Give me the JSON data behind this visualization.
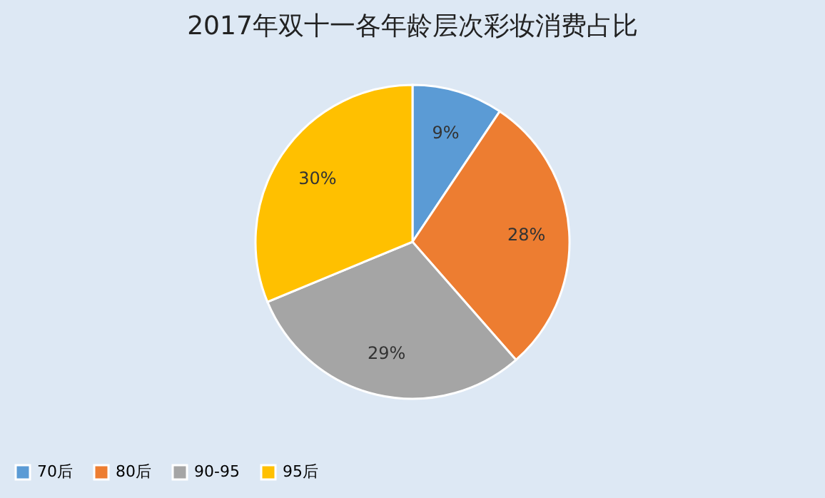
{
  "chart_data": {
    "type": "pie",
    "title": "2017年双十一各年龄层次彩妆消费占比",
    "categories": [
      "70后",
      "80后",
      "90-95",
      "95后"
    ],
    "values": [
      9,
      28,
      29,
      30
    ],
    "value_labels": [
      "9%",
      "28%",
      "29%",
      "30%"
    ],
    "colors": [
      "#5b9bd5",
      "#ed7d31",
      "#a5a5a5",
      "#ffc000"
    ],
    "legend": "bottom"
  }
}
